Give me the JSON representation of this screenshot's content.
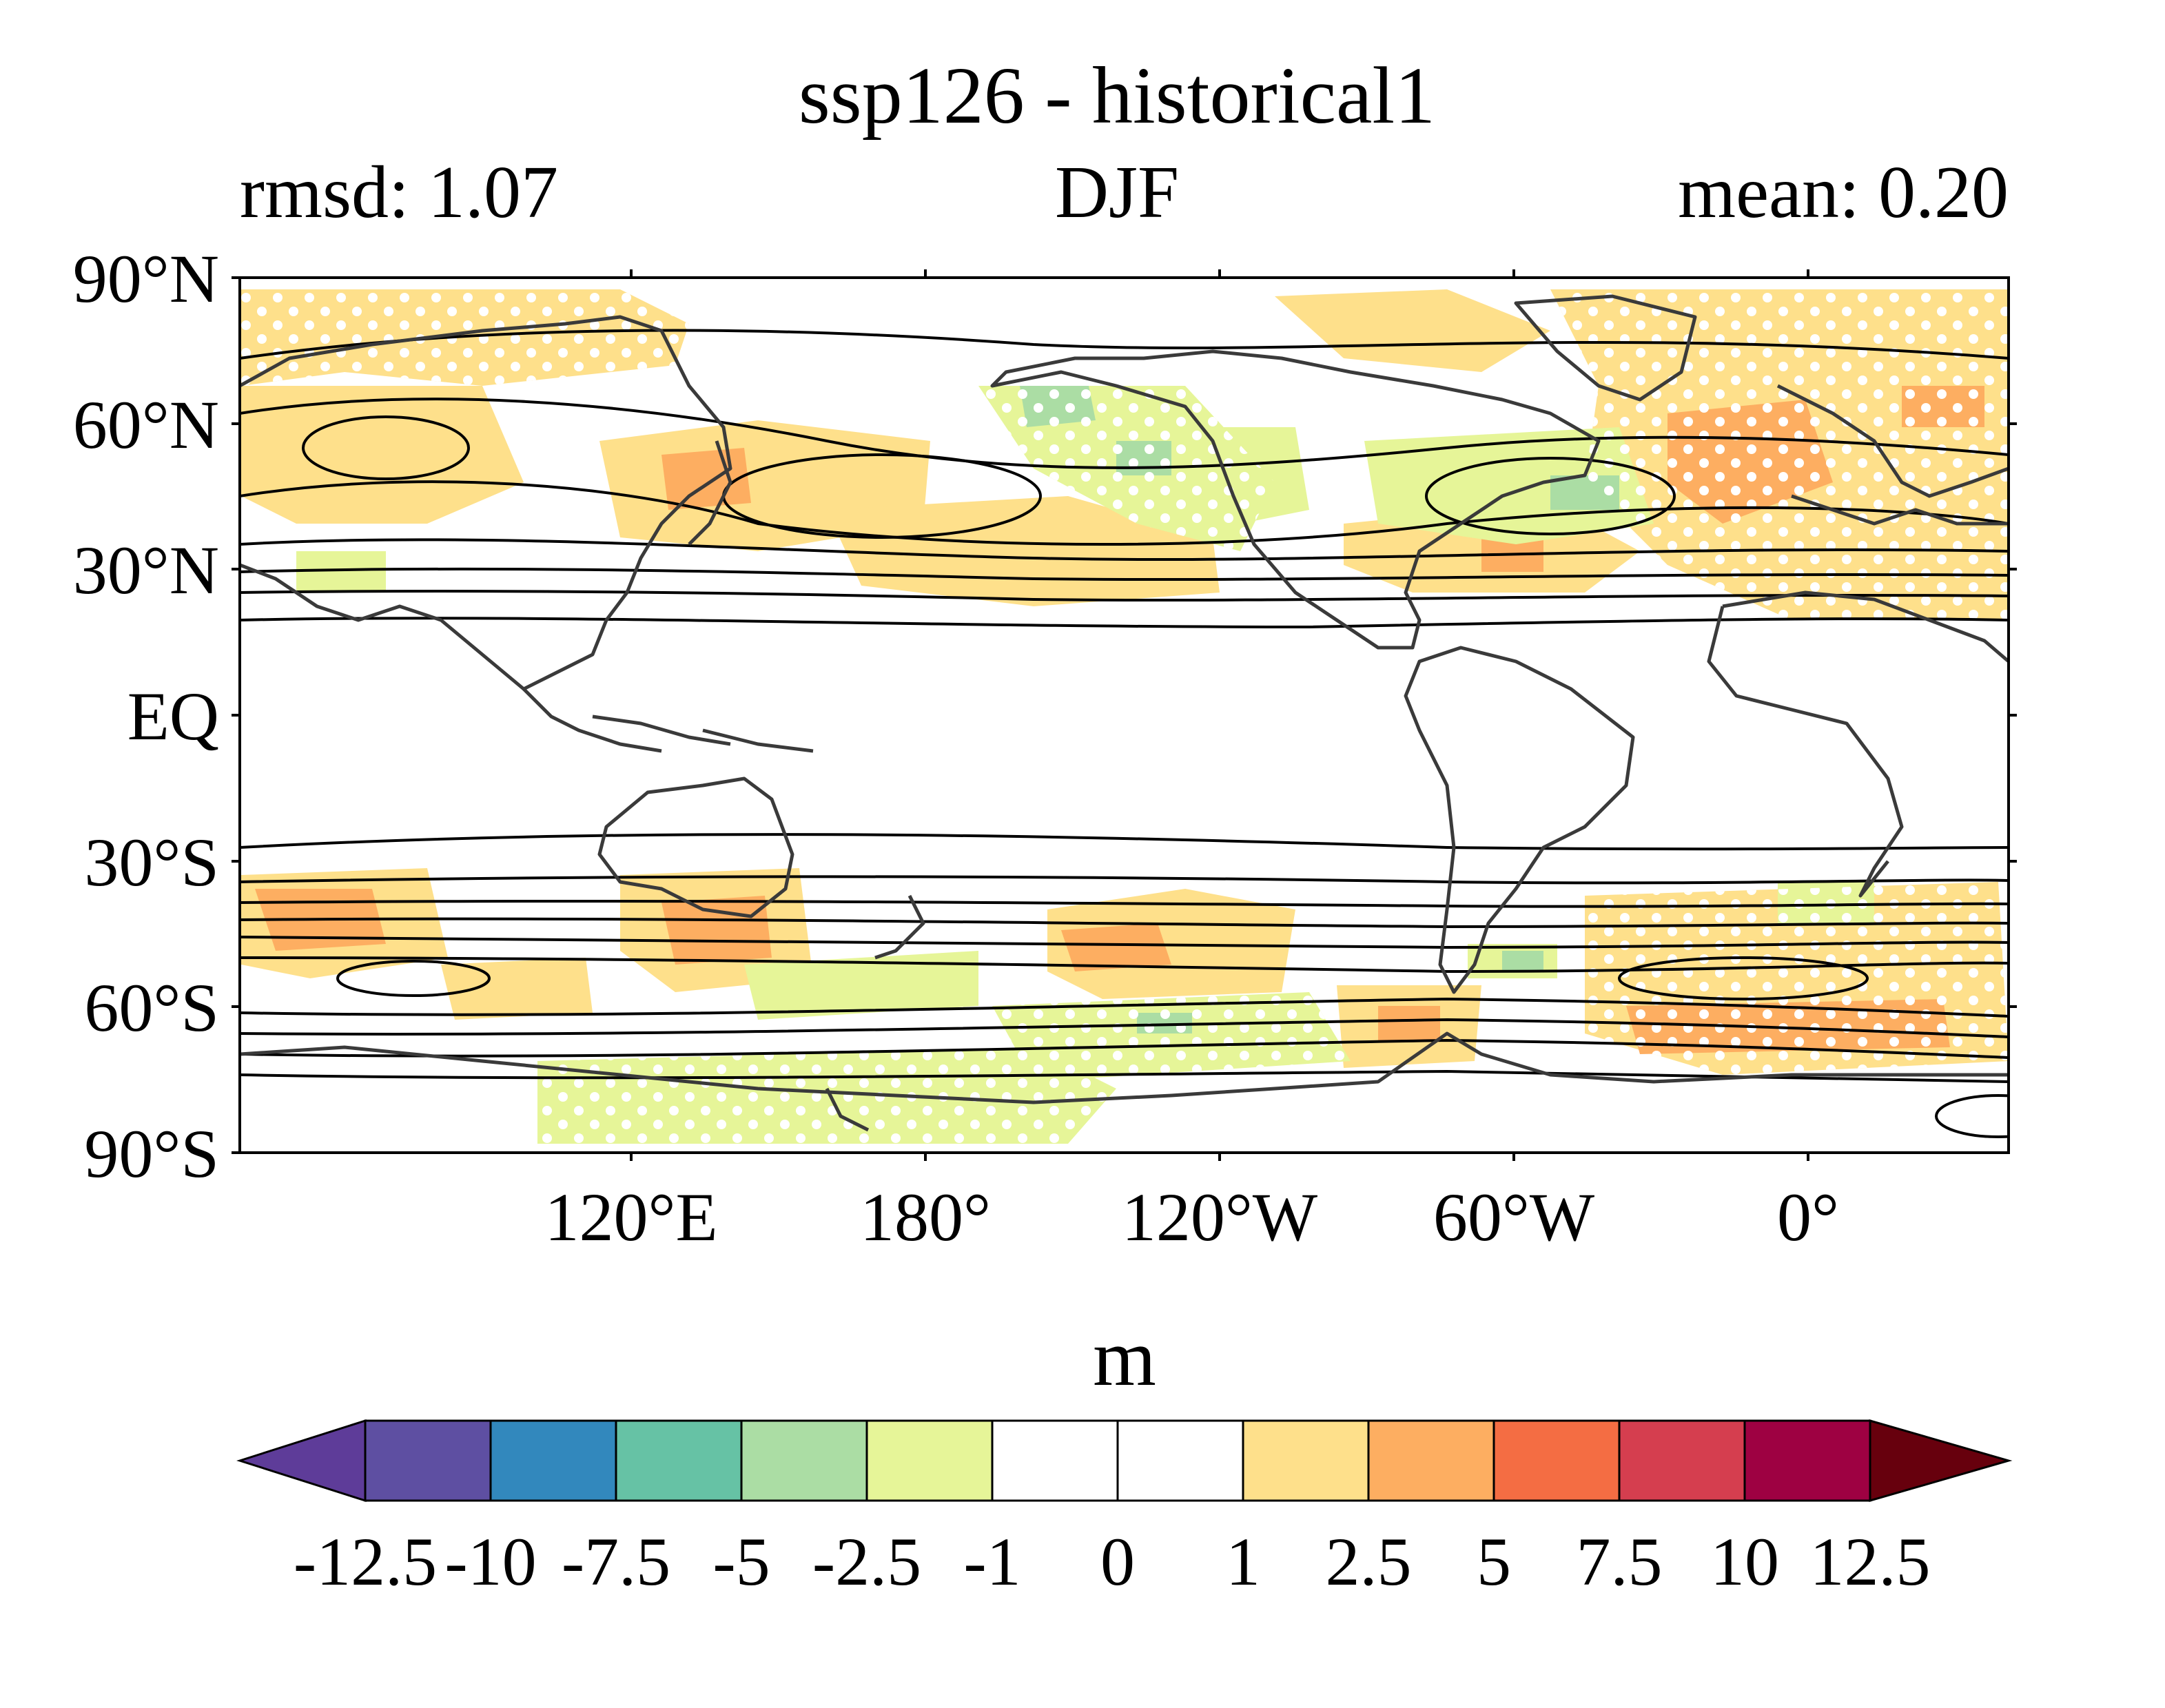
{
  "title": "ssp126 - historical1",
  "subtitle": {
    "left": "rmsd: 1.07",
    "center": "DJF",
    "right": "mean: 0.20"
  },
  "map": {
    "projection": "equirectangular, centered on 160°W",
    "lat_labels": [
      "90°N",
      "60°N",
      "30°N",
      "EQ",
      "30°S",
      "60°S",
      "90°S"
    ],
    "lon_labels": [
      "120°E",
      "180°",
      "120°W",
      "60°W",
      "0°"
    ],
    "coastline_color": "#3a3a3a",
    "contour_color": "#000000",
    "stippling": "white dots over significant regions"
  },
  "colorbar": {
    "label": "m",
    "ticks": [
      "-12.5",
      "-10",
      "-7.5",
      "-5",
      "-2.5",
      "-1",
      "0",
      "1",
      "2.5",
      "5",
      "7.5",
      "10",
      "12.5"
    ],
    "colors": [
      "#5e3c99",
      "#5e4fa2",
      "#3288bd",
      "#66c2a5",
      "#abdda4",
      "#e6f598",
      "#ffffff",
      "#ffffff",
      "#fee08b",
      "#fdae61",
      "#f46d43",
      "#d53e4f",
      "#9e0142",
      "#67000d"
    ]
  }
}
